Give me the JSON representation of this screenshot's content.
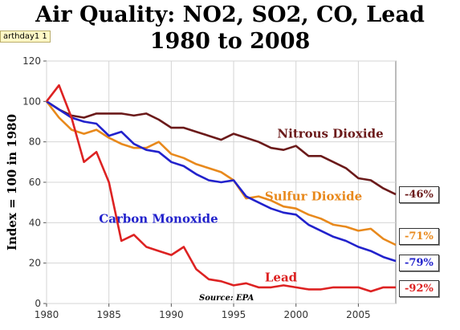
{
  "browser_tooltip": "arthday1 1",
  "chart_data": {
    "type": "line",
    "title": "Air Quality: NO2, SO2, CO, Lead",
    "subtitle": "1980 to 2008",
    "ylabel": "Index = 100 in 1980",
    "xlabel": "",
    "xlim": [
      1980,
      2008
    ],
    "ylim": [
      0,
      120
    ],
    "x_ticks": [
      1980,
      1985,
      1990,
      1995,
      2000,
      2005
    ],
    "y_ticks": [
      0,
      20,
      40,
      60,
      80,
      100,
      120
    ],
    "grid": true,
    "source": "Source: EPA",
    "x": [
      1980,
      1981,
      1982,
      1983,
      1984,
      1985,
      1986,
      1987,
      1988,
      1989,
      1990,
      1991,
      1992,
      1993,
      1994,
      1995,
      1996,
      1997,
      1998,
      1999,
      2000,
      2001,
      2002,
      2003,
      2004,
      2005,
      2006,
      2007,
      2008
    ],
    "series": [
      {
        "name": "Nitrous Dioxide",
        "color": "#6b1a1a",
        "end_label": "-46%",
        "values": [
          100,
          96,
          93,
          92,
          94,
          94,
          94,
          93,
          94,
          91,
          87,
          87,
          85,
          83,
          81,
          84,
          82,
          80,
          77,
          76,
          78,
          73,
          73,
          70,
          67,
          62,
          61,
          57,
          54
        ]
      },
      {
        "name": "Sulfur Dioxide",
        "color": "#e8891c",
        "end_label": "-71%",
        "values": [
          100,
          92,
          86,
          84,
          86,
          82,
          79,
          77,
          77,
          80,
          74,
          72,
          69,
          67,
          65,
          61,
          52,
          53,
          51,
          48,
          47,
          44,
          42,
          39,
          38,
          36,
          37,
          32,
          29
        ]
      },
      {
        "name": "Carbon Monoxide",
        "color": "#2222cc",
        "end_label": "-79%",
        "values": [
          100,
          96,
          92,
          90,
          89,
          83,
          85,
          79,
          76,
          75,
          70,
          68,
          64,
          61,
          60,
          61,
          53,
          50,
          47,
          45,
          44,
          39,
          36,
          33,
          31,
          28,
          26,
          23,
          21
        ]
      },
      {
        "name": "Lead",
        "color": "#dd2222",
        "end_label": "-92%",
        "values": [
          100,
          108,
          92,
          70,
          75,
          60,
          31,
          34,
          28,
          26,
          24,
          28,
          17,
          12,
          11,
          9,
          10,
          8,
          8,
          9,
          8,
          7,
          7,
          8,
          8,
          8,
          6,
          8,
          8
        ]
      }
    ]
  }
}
